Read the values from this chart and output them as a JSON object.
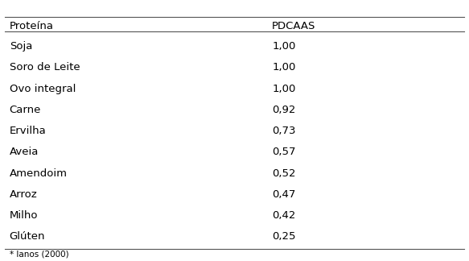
{
  "proteins": [
    "Soja",
    "Soro de Leite",
    "Ovo integral",
    "Carne",
    "Ervilha",
    "Aveia",
    "Amendoim",
    "Arroz",
    "Milho",
    "Glúten"
  ],
  "pdcaas": [
    "1,00",
    "1,00",
    "1,00",
    "0,92",
    "0,73",
    "0,57",
    "0,52",
    "0,47",
    "0,42",
    "0,25"
  ],
  "col1_header": "Proteína",
  "col2_header": "PDCAAS",
  "footnote": "* Ianos (2000)",
  "bg_color": "#ffffff",
  "text_color": "#000000",
  "line_color": "#555555",
  "font_size": 9.5,
  "header_font_size": 9.5,
  "footnote_font_size": 7.5
}
